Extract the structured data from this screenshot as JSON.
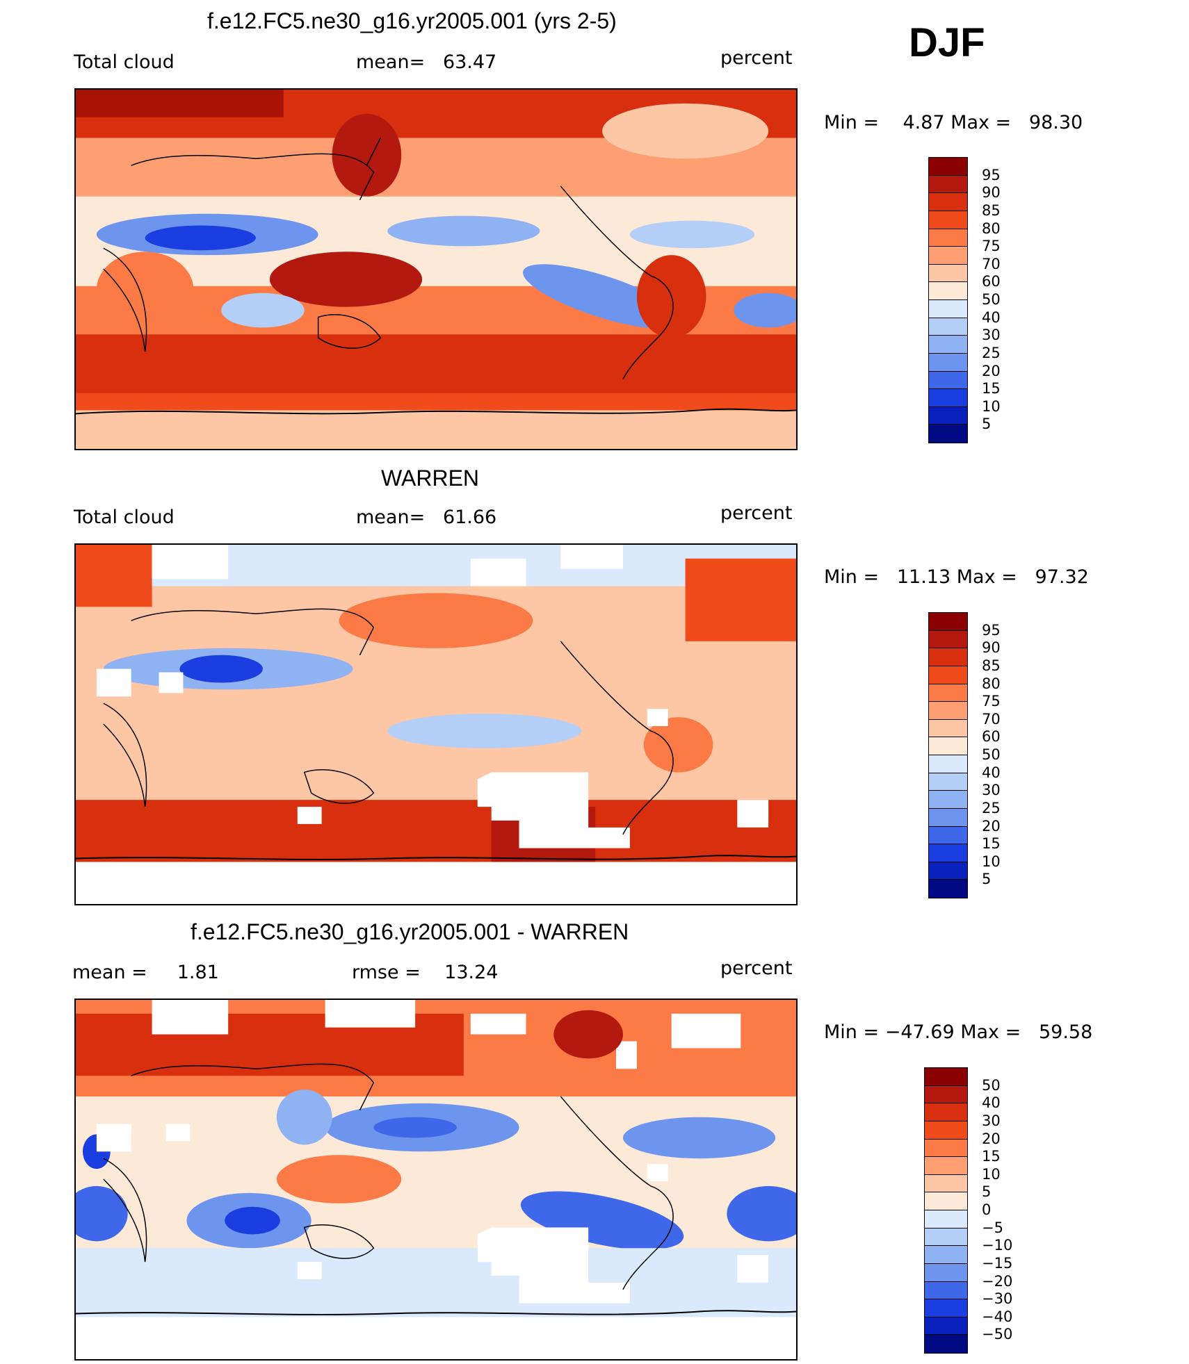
{
  "season": "DJF",
  "panels": [
    {
      "title": "f.e12.FC5.ne30_g16.yr2005.001 (yrs 2-5)",
      "left_label": "Total cloud",
      "center_label": "mean=   63.47",
      "units": "percent",
      "minmax": "Min =    4.87 Max =   98.30",
      "colorbar": {
        "labels": [
          "95",
          "90",
          "85",
          "80",
          "75",
          "70",
          "60",
          "50",
          "40",
          "30",
          "25",
          "20",
          "15",
          "10",
          "5"
        ],
        "colors": [
          "#8b0000",
          "#b3190e",
          "#d8300f",
          "#f04b1b",
          "#fc7a45",
          "#fd9f73",
          "#fdc6a5",
          "#fde9d8",
          "#dae9fb",
          "#b3cff8",
          "#8fb2f2",
          "#6e95ee",
          "#3e67e9",
          "#1b3ee0",
          "#0a20bd",
          "#000a82"
        ]
      }
    },
    {
      "title": "WARREN",
      "left_label": "Total cloud",
      "center_label": "mean=   61.66",
      "units": "percent",
      "minmax": "Min =   11.13 Max =   97.32",
      "colorbar": {
        "labels": [
          "95",
          "90",
          "85",
          "80",
          "75",
          "70",
          "60",
          "50",
          "40",
          "30",
          "25",
          "20",
          "15",
          "10",
          "5"
        ],
        "colors": [
          "#8b0000",
          "#b3190e",
          "#d8300f",
          "#f04b1b",
          "#fc7a45",
          "#fd9f73",
          "#fdc6a5",
          "#fde9d8",
          "#dae9fb",
          "#b3cff8",
          "#8fb2f2",
          "#6e95ee",
          "#3e67e9",
          "#1b3ee0",
          "#0a20bd",
          "#000a82"
        ]
      }
    },
    {
      "title": "f.e12.FC5.ne30_g16.yr2005.001 - WARREN",
      "left_label": "mean =     1.81",
      "center_label": "rmse =    13.24",
      "units": "percent",
      "minmax": "Min = −47.69 Max =   59.58",
      "colorbar": {
        "labels": [
          "50",
          "40",
          "30",
          "20",
          "15",
          "10",
          "5",
          "0",
          "−5",
          "−10",
          "−15",
          "−20",
          "−30",
          "−40",
          "−50"
        ],
        "colors": [
          "#8b0000",
          "#b3190e",
          "#d8300f",
          "#f04b1b",
          "#fc7a45",
          "#fd9f73",
          "#fdc6a5",
          "#fde9d8",
          "#dae9fb",
          "#b3cff8",
          "#8fb2f2",
          "#6e95ee",
          "#3e67e9",
          "#1b3ee0",
          "#0a20bd",
          "#000a82"
        ]
      }
    }
  ]
}
